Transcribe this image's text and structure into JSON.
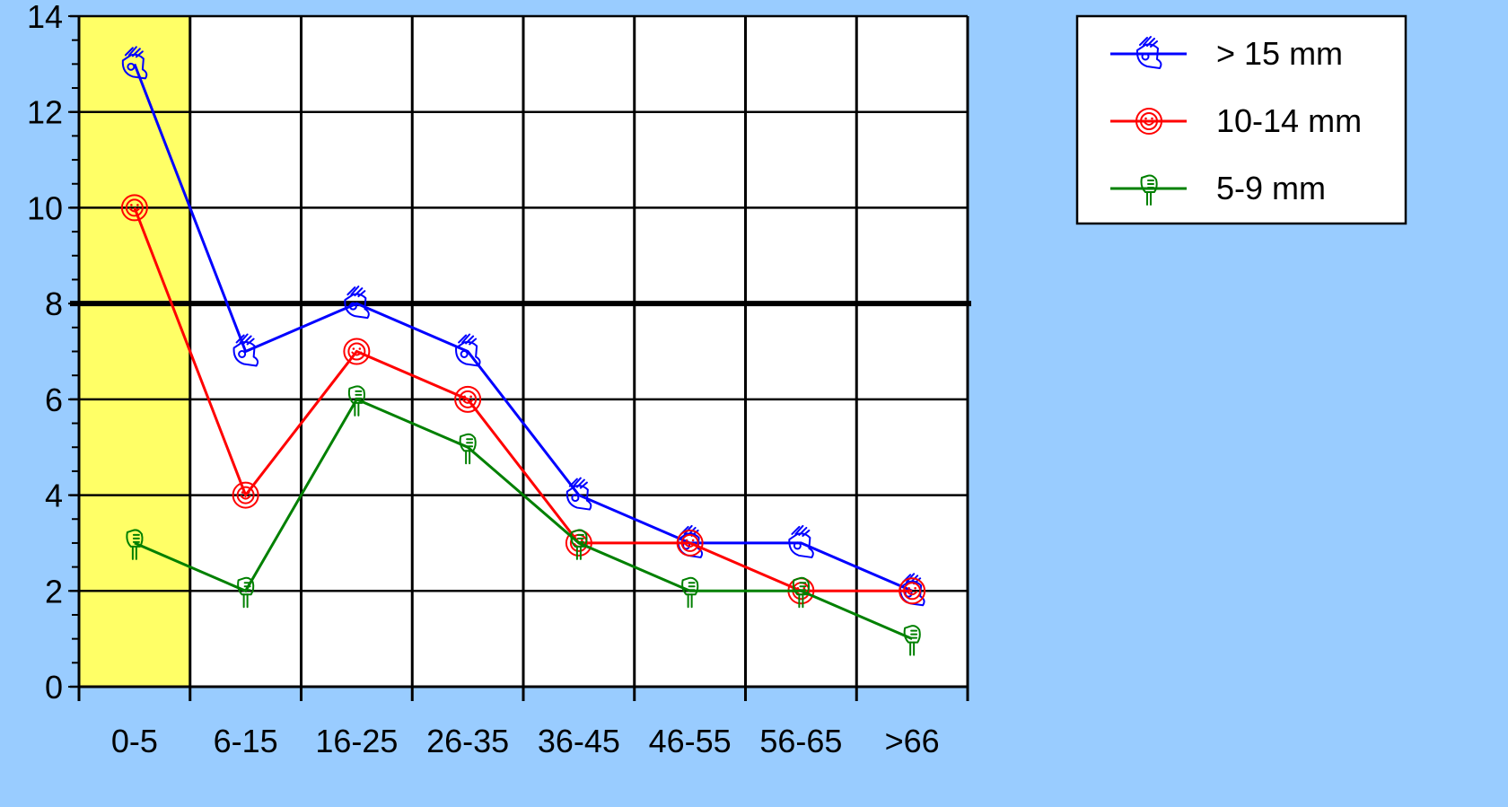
{
  "chart_data": {
    "type": "line",
    "title": "",
    "xlabel": "",
    "ylabel": "",
    "categories": [
      "0-5",
      "6-15",
      "16-25",
      "26-35",
      "36-45",
      "46-55",
      "56-65",
      ">66"
    ],
    "ylim": [
      0,
      14
    ],
    "yticks": [
      "0",
      "2",
      "4",
      "6",
      "8",
      "10",
      "12",
      "14"
    ],
    "grid": true,
    "highlight_category": "0-5",
    "highlight_color": "#ffff66",
    "reference_line_y": 8,
    "legend_position": "top-right",
    "series": [
      {
        "name": "> 15 mm",
        "color": "#0000ff",
        "marker": "ok-hand-icon",
        "values": [
          13,
          7,
          8,
          7,
          4,
          3,
          3,
          2
        ]
      },
      {
        "name": "10-14 mm",
        "color": "#ff0000",
        "marker": "smiley-face-icon",
        "values": [
          10,
          4,
          7,
          6,
          3,
          3,
          2,
          2
        ]
      },
      {
        "name": "5-9 mm",
        "color": "#008000",
        "marker": "pointing-hand-icon",
        "values": [
          3,
          2,
          6,
          5,
          3,
          2,
          2,
          1
        ]
      }
    ]
  }
}
